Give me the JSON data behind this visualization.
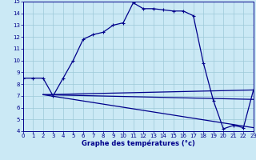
{
  "xlabel": "Graphe des températures (°c)",
  "bg_color": "#cbe9f5",
  "line_color": "#00008b",
  "grid_color": "#9dc8d8",
  "ylim": [
    4,
    15
  ],
  "xlim": [
    0,
    23
  ],
  "yticks": [
    4,
    5,
    6,
    7,
    8,
    9,
    10,
    11,
    12,
    13,
    14,
    15
  ],
  "xticks": [
    0,
    1,
    2,
    3,
    4,
    5,
    6,
    7,
    8,
    9,
    10,
    11,
    12,
    13,
    14,
    15,
    16,
    17,
    18,
    19,
    20,
    21,
    22,
    23
  ],
  "line1_x": [
    0,
    1,
    2,
    3,
    4,
    5,
    6,
    7,
    8,
    9,
    10,
    11,
    12,
    13,
    14,
    15,
    16,
    17,
    18,
    19,
    20,
    21,
    22,
    23
  ],
  "line1_y": [
    8.5,
    8.5,
    8.5,
    7.0,
    8.5,
    10.0,
    11.8,
    12.2,
    12.4,
    13.0,
    13.2,
    14.9,
    14.4,
    14.4,
    14.3,
    14.2,
    14.2,
    13.8,
    9.8,
    6.6,
    4.2,
    4.5,
    4.3,
    7.5
  ],
  "fan_start_x": 2,
  "fan_start_y": 7.1,
  "fan_lines": [
    {
      "x2": 23,
      "y2": 7.5
    },
    {
      "x2": 23,
      "y2": 6.7
    },
    {
      "x2": 23,
      "y2": 4.3
    }
  ]
}
